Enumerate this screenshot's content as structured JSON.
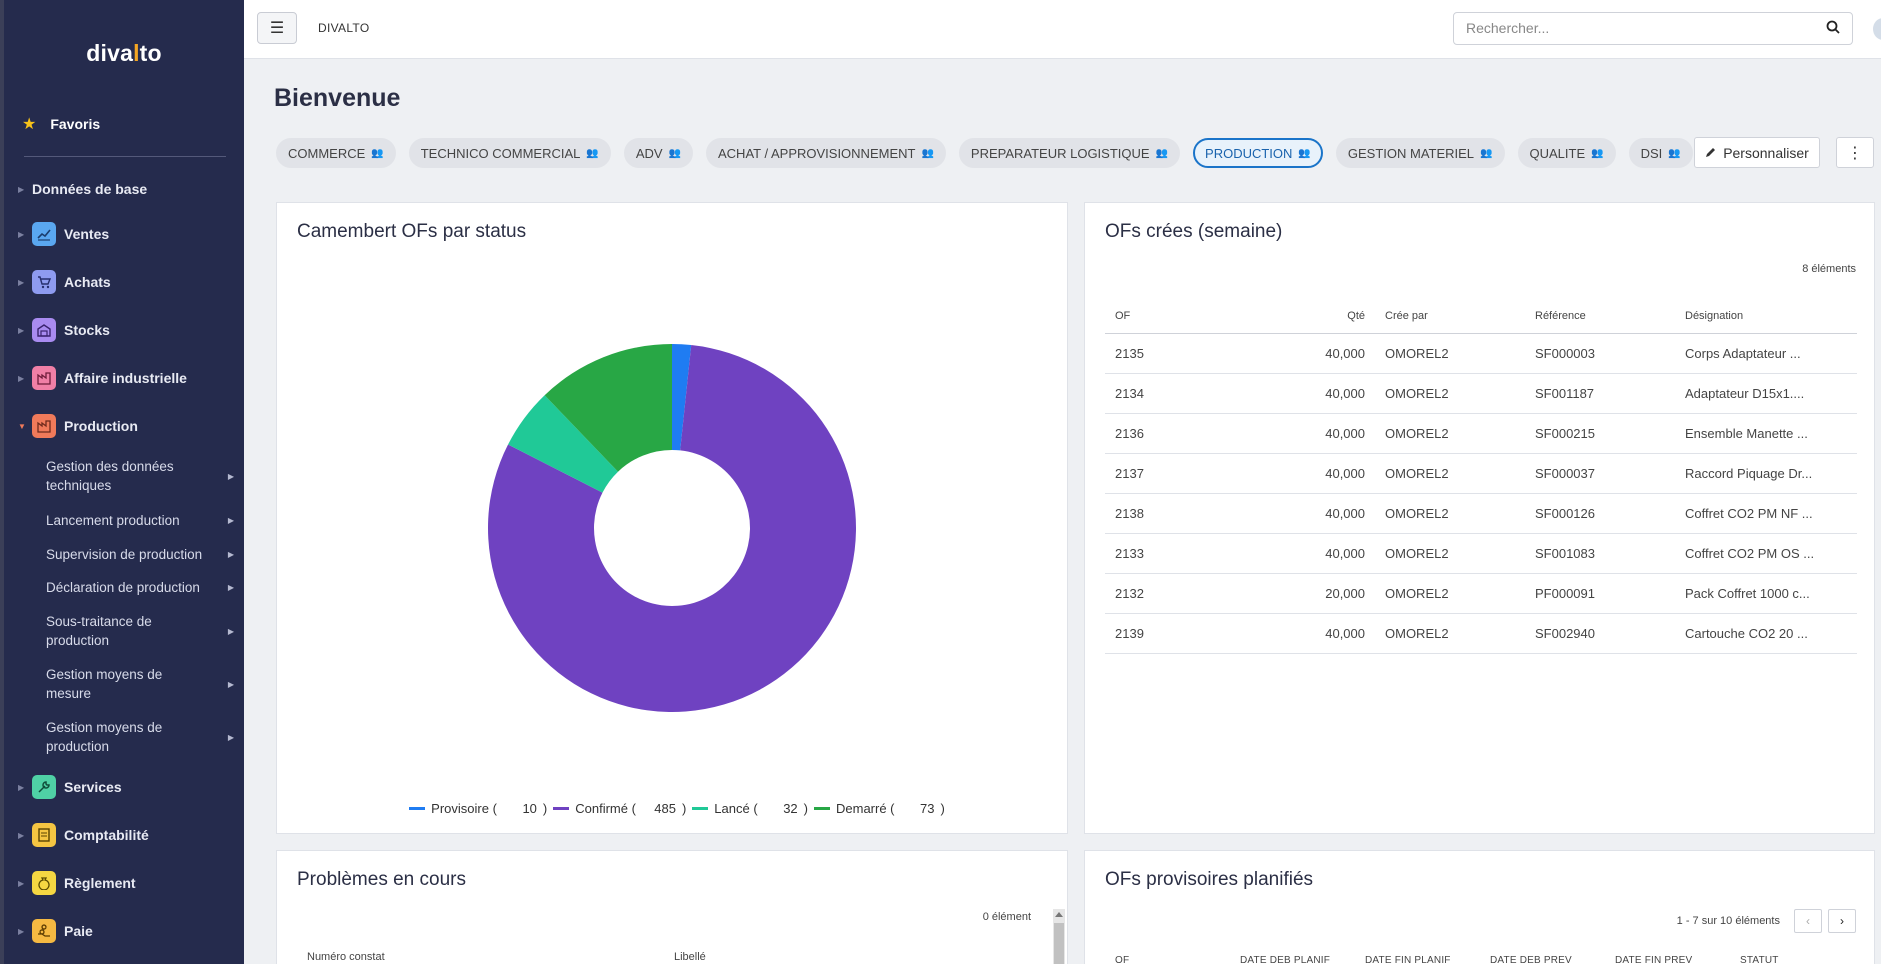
{
  "sidebar": {
    "logo_prefix": "diva",
    "logo_accent": "l",
    "logo_suffix": "to",
    "favorites_label": "Favoris",
    "items": [
      {
        "label": "Données de base",
        "icon": "",
        "color": ""
      },
      {
        "label": "Ventes",
        "icon": "chart-line-icon",
        "color": "#5aa7f0"
      },
      {
        "label": "Achats",
        "icon": "cart-icon",
        "color": "#8e9bf0"
      },
      {
        "label": "Stocks",
        "icon": "warehouse-icon",
        "color": "#a98bf0"
      },
      {
        "label": "Affaire industrielle",
        "icon": "factory-icon",
        "color": "#f07fa6"
      },
      {
        "label": "Production",
        "icon": "factory-icon",
        "color": "#f07a5a"
      },
      {
        "label": "Services",
        "icon": "wrench-icon",
        "color": "#4fd1a5"
      },
      {
        "label": "Comptabilité",
        "icon": "ledger-icon",
        "color": "#f5c542"
      },
      {
        "label": "Règlement",
        "icon": "money-bag-icon",
        "color": "#f5d742"
      },
      {
        "label": "Paie",
        "icon": "payroll-icon",
        "color": "#f5b942"
      }
    ],
    "production_sub": [
      "Gestion des données techniques",
      "Lancement production",
      "Supervision de production",
      "Déclaration de production",
      "Sous-traitance de production",
      "Gestion moyens de mesure",
      "Gestion moyens de production"
    ]
  },
  "topbar": {
    "app_name": "DIVALTO",
    "search_placeholder": "Rechercher..."
  },
  "page": {
    "title": "Bienvenue",
    "chips": [
      {
        "label": "COMMERCE",
        "active": false
      },
      {
        "label": "TECHNICO COMMERCIAL",
        "active": false
      },
      {
        "label": "ADV",
        "active": false
      },
      {
        "label": "ACHAT / APPROVISIONNEMENT",
        "active": false
      },
      {
        "label": "PREPARATEUR LOGISTIQUE",
        "active": false
      },
      {
        "label": "PRODUCTION",
        "active": true
      },
      {
        "label": "GESTION MATERIEL",
        "active": false
      },
      {
        "label": "QUALITE",
        "active": false
      },
      {
        "label": "DSI",
        "active": false
      }
    ],
    "customize_label": "Personnaliser"
  },
  "pie_card": {
    "title": "Camembert OFs par status"
  },
  "chart_data": {
    "type": "pie",
    "donut": true,
    "title": "Camembert OFs par status",
    "legend_position": "bottom",
    "series": [
      {
        "name": "Provisoire (",
        "value": 10,
        "suffix": ")",
        "color": "#1f7cf2"
      },
      {
        "name": "Confirmé (",
        "value": 485,
        "suffix": ")",
        "color": "#6f42c1"
      },
      {
        "name": "Lancé (",
        "value": 32,
        "suffix": ")",
        "color": "#20c997"
      },
      {
        "name": "Demarré (",
        "value": 73,
        "suffix": ")",
        "color": "#28a745"
      }
    ]
  },
  "of_card": {
    "title": "OFs crées (semaine)",
    "count": "8 éléments",
    "columns": [
      "OF",
      "Qté",
      "Crée par",
      "Référence",
      "Désignation"
    ],
    "rows": [
      [
        "2135",
        "40,000",
        "OMOREL2",
        "SF000003",
        "Corps Adaptateur ..."
      ],
      [
        "2134",
        "40,000",
        "OMOREL2",
        "SF001187",
        "Adaptateur D15x1...."
      ],
      [
        "2136",
        "40,000",
        "OMOREL2",
        "SF000215",
        "Ensemble Manette ..."
      ],
      [
        "2137",
        "40,000",
        "OMOREL2",
        "SF000037",
        "Raccord Piquage Dr..."
      ],
      [
        "2138",
        "40,000",
        "OMOREL2",
        "SF000126",
        "Coffret CO2 PM NF ..."
      ],
      [
        "2133",
        "40,000",
        "OMOREL2",
        "SF001083",
        "Coffret CO2 PM OS ..."
      ],
      [
        "2132",
        "20,000",
        "OMOREL2",
        "PF000091",
        "Pack Coffret 1000 c..."
      ],
      [
        "2139",
        "40,000",
        "OMOREL2",
        "SF002940",
        "Cartouche CO2 20 ..."
      ]
    ]
  },
  "problems_card": {
    "title": "Problèmes en cours",
    "count": "0 élément",
    "columns": [
      "Numéro constat",
      "Libellé"
    ]
  },
  "planned_card": {
    "title": "OFs provisoires planifiés",
    "pager_text": "1 - 7 sur 10 éléments",
    "columns": [
      "OF",
      "DATE DEB PLANIF",
      "DATE FIN PLANIF",
      "DATE DEB PREV",
      "DATE FIN PREV",
      "STATUT"
    ]
  }
}
